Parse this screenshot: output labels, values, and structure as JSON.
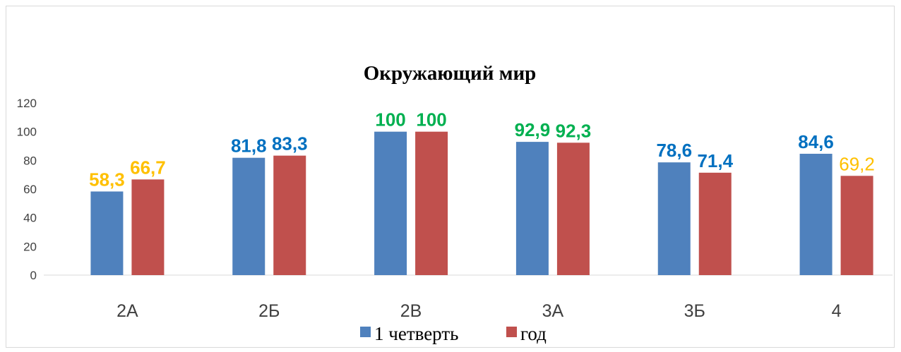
{
  "chart_data": {
    "type": "bar",
    "title": "Окружающий мир",
    "categories": [
      "2А",
      "2Б",
      "2В",
      "3А",
      "3Б",
      "4"
    ],
    "series": [
      {
        "name": "1 четверть",
        "color": "#4f81bd",
        "values": [
          58.3,
          81.8,
          100,
          92.9,
          78.6,
          84.6
        ],
        "value_labels": [
          "58,3",
          "81,8",
          "100",
          "92,9",
          "78,6",
          "84,6"
        ],
        "label_colors": [
          "#ffc000",
          "#0070c0",
          "#00b050",
          "#00b050",
          "#0070c0",
          "#0070c0"
        ],
        "label_bold": [
          true,
          true,
          true,
          true,
          true,
          true
        ]
      },
      {
        "name": "год",
        "color": "#c0504d",
        "values": [
          66.7,
          83.3,
          100,
          92.3,
          71.4,
          69.2
        ],
        "value_labels": [
          "66,7",
          "83,3",
          "100",
          "92,3",
          "71,4",
          "69,2"
        ],
        "label_colors": [
          "#ffc000",
          "#0070c0",
          "#00b050",
          "#00b050",
          "#0070c0",
          "#ffc000"
        ],
        "label_bold": [
          true,
          true,
          true,
          true,
          true,
          false
        ]
      }
    ],
    "ylim": [
      0,
      120
    ],
    "yticks": [
      0,
      20,
      40,
      60,
      80,
      100,
      120
    ],
    "grid": false,
    "legend": "bottom"
  }
}
